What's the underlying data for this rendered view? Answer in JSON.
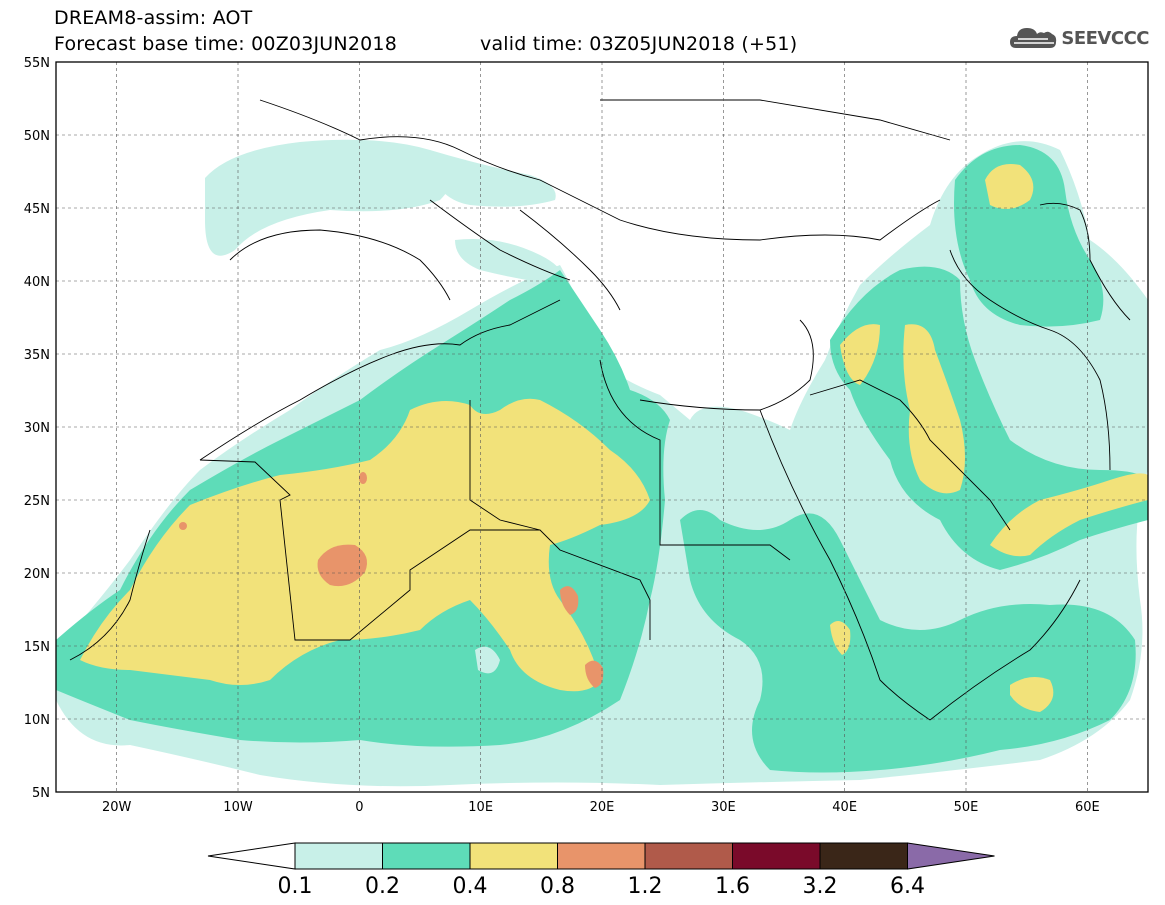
{
  "header": {
    "title": "DREAM8-assim: AOT",
    "base_time": "Forecast base time: 00Z03JUN2018",
    "valid_time": "valid time: 03Z05JUN2018 (+51)",
    "logo_text": "SEEVCCC",
    "logo_icon": "cloud-icon"
  },
  "map": {
    "lat_labels": [
      "55N",
      "50N",
      "45N",
      "40N",
      "35N",
      "30N",
      "25N",
      "20N",
      "15N",
      "10N",
      "5N"
    ],
    "lon_labels": [
      "20W",
      "10W",
      "0",
      "10E",
      "20E",
      "30E",
      "40E",
      "50E",
      "60E"
    ],
    "lon_range": [
      -25,
      65
    ],
    "lat_range": [
      5,
      55
    ]
  },
  "colorbar": {
    "levels": [
      "0.1",
      "0.2",
      "0.4",
      "0.8",
      "1.2",
      "1.6",
      "3.2",
      "6.4"
    ],
    "colors": [
      "#c8f0e8",
      "#5edcb8",
      "#f2e27a",
      "#e8946a",
      "#b05a4a",
      "#7a0a2a",
      "#3a2618",
      "#8a6aa8"
    ],
    "under_color": "#ffffff"
  },
  "palette": {
    "c01": "#c8f0e8",
    "c02": "#5edcb8",
    "c04": "#f2e27a",
    "c08": "#e8946a"
  }
}
